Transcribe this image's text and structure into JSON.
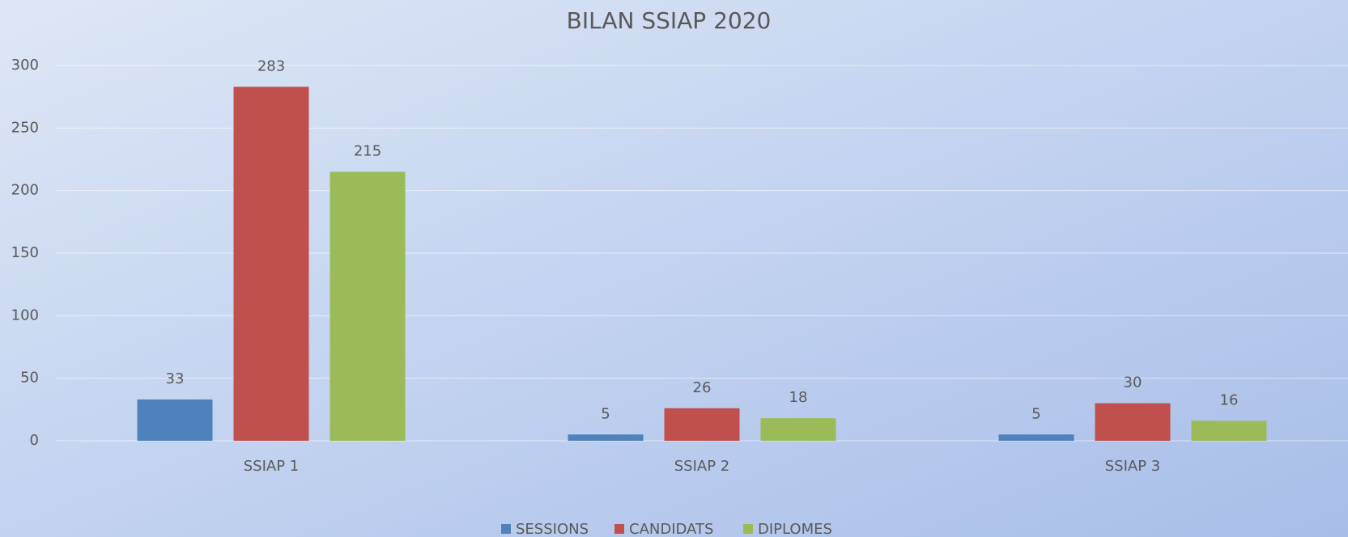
{
  "chart_data": {
    "type": "bar",
    "title": "BILAN SSIAP 2020",
    "categories": [
      "SSIAP 1",
      "SSIAP 2",
      "SSIAP 3"
    ],
    "series": [
      {
        "name": "SESSIONS",
        "color": "#4f81bd",
        "values": [
          33,
          5,
          5
        ]
      },
      {
        "name": "CANDIDATS",
        "color": "#c0504d",
        "values": [
          283,
          26,
          30
        ]
      },
      {
        "name": "DIPLOMES",
        "color": "#9bbb59",
        "values": [
          215,
          18,
          16
        ]
      }
    ],
    "ylim": [
      0,
      300
    ],
    "yticks": [
      0,
      50,
      100,
      150,
      200,
      250,
      300
    ],
    "grid": true,
    "legend": "bottom"
  }
}
